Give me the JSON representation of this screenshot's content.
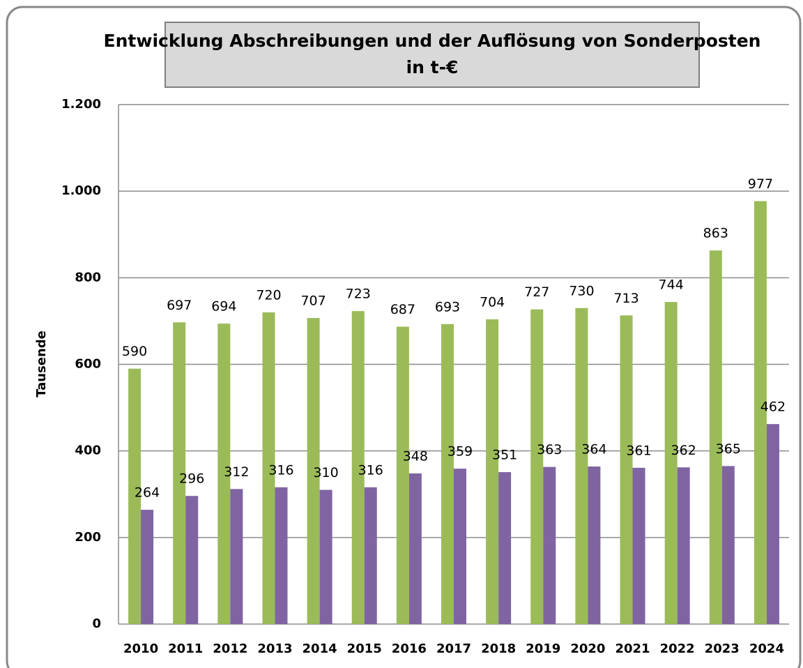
{
  "chart_data": {
    "type": "bar",
    "title": "Entwicklung Abschreibungen und der Auflösung von Sonderposten in t-€",
    "y_label": "Tausende",
    "categories": [
      "2010",
      "2011",
      "2012",
      "2013",
      "2014",
      "2015",
      "2016",
      "2017",
      "2018",
      "2019",
      "2020",
      "2021",
      "2022",
      "2023",
      "2024"
    ],
    "series": [
      {
        "color": "#9bbb59",
        "values": [
          590,
          697,
          694,
          720,
          707,
          723,
          687,
          693,
          704,
          727,
          730,
          713,
          744,
          863,
          977
        ]
      },
      {
        "color": "#8064a2",
        "values": [
          264,
          296,
          312,
          316,
          310,
          316,
          348,
          359,
          351,
          363,
          364,
          361,
          362,
          365,
          462
        ]
      }
    ],
    "ylim": [
      0,
      1200
    ],
    "yticks": [
      0,
      200,
      400,
      600,
      800,
      {
        "value": 1000,
        "label": "1.000"
      },
      {
        "value": 1200,
        "label": "1.200"
      }
    ],
    "grid": true
  }
}
